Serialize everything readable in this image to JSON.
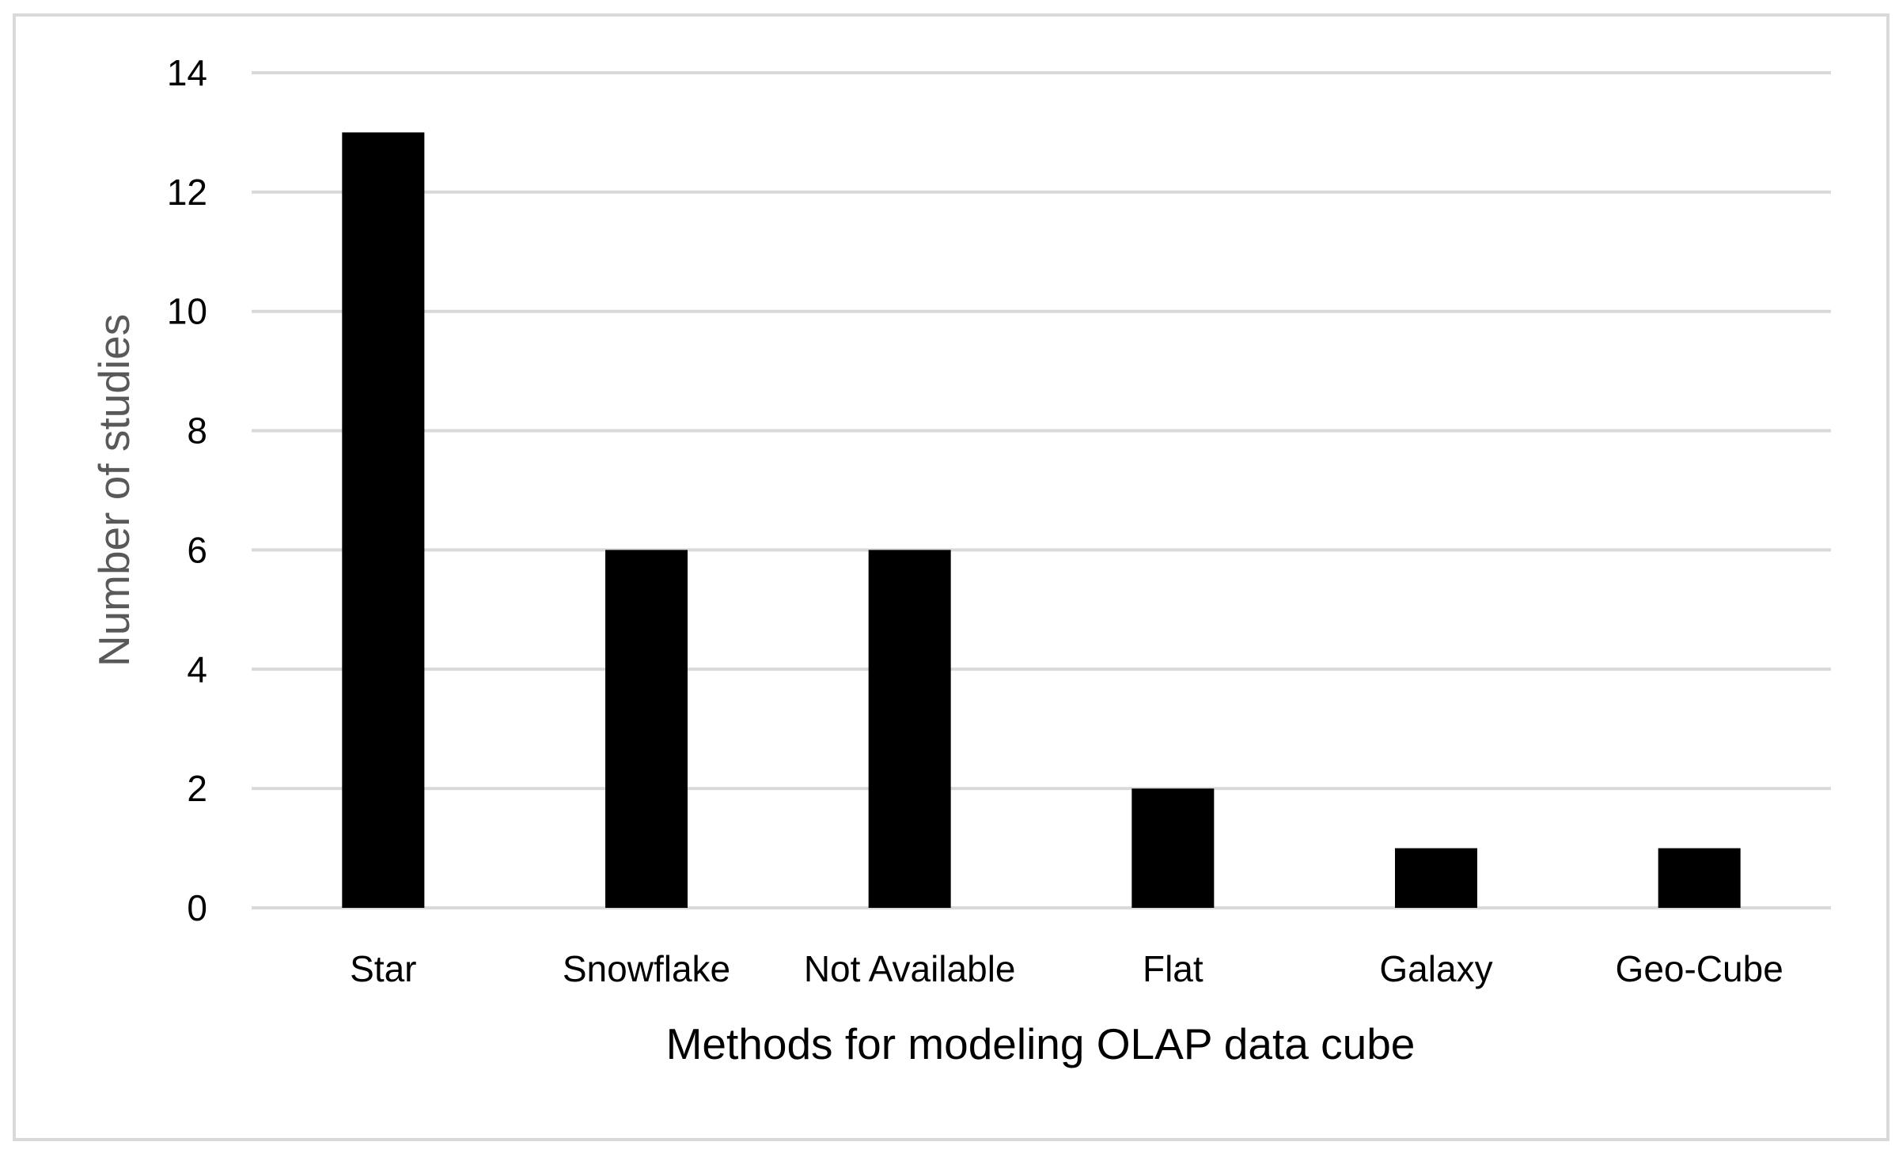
{
  "chart_data": {
    "type": "bar",
    "title": "",
    "xlabel": "Methods for modeling OLAP data cube",
    "ylabel": "Number of studies",
    "categories": [
      "Star",
      "Snowflake",
      "Not Available",
      "Flat",
      "Galaxy",
      "Geo-Cube"
    ],
    "values": [
      13,
      6,
      6,
      2,
      1,
      1
    ],
    "ylim": [
      0,
      14
    ],
    "yticks": [
      0,
      2,
      4,
      6,
      8,
      10,
      12,
      14
    ],
    "grid": true,
    "legend": "none",
    "colors": {
      "bar": "#000000",
      "grid": "#d9d9d9",
      "border": "#d9d9d9",
      "xlabel": "#000000",
      "ylabel": "#595959"
    }
  }
}
